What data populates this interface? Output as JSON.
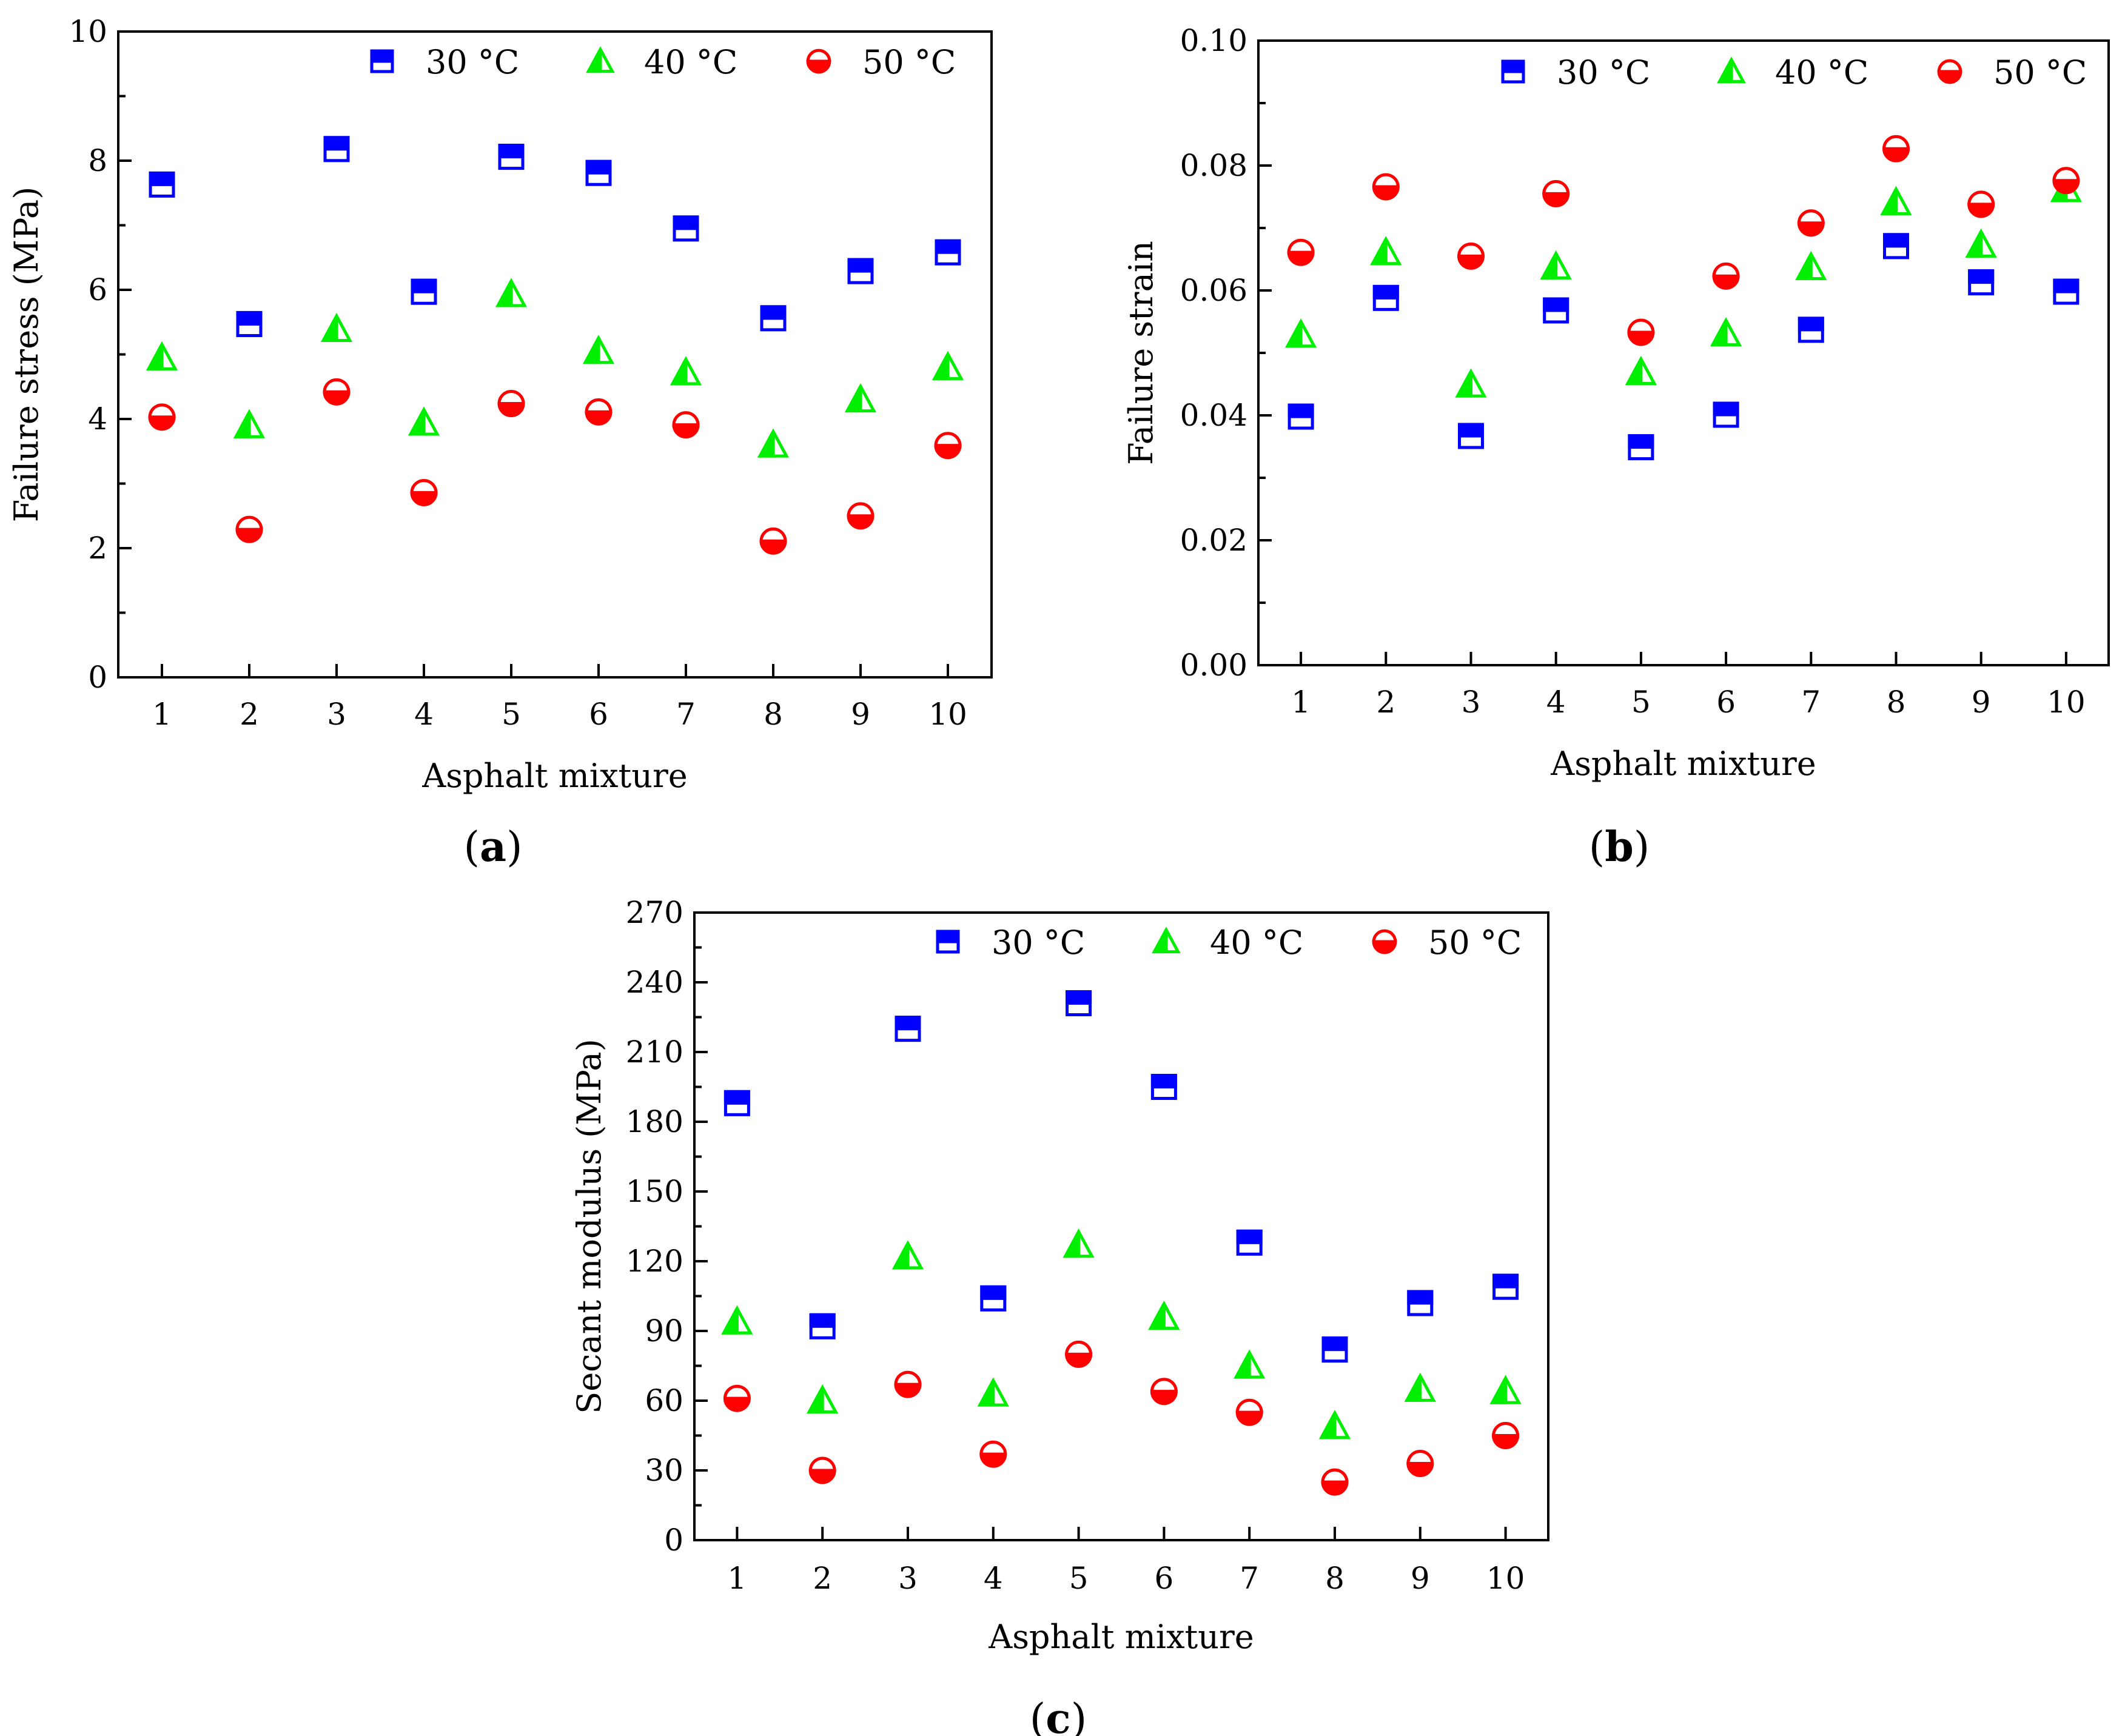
{
  "chart_data": [
    {
      "type": "scatter",
      "panel_label": "(a)",
      "caption_open": "(",
      "caption_letter": "a",
      "caption_close": ")",
      "xlabel": "Asphalt mixture",
      "ylabel": "Failure stress (MPa)",
      "categories": [
        "1",
        "2",
        "3",
        "4",
        "5",
        "6",
        "7",
        "8",
        "9",
        "10"
      ],
      "x": [
        1,
        2,
        3,
        4,
        5,
        6,
        7,
        8,
        9,
        10
      ],
      "xlim": [
        0.5,
        10.5
      ],
      "ylim": [
        0,
        10
      ],
      "yticks": [
        0,
        2,
        4,
        6,
        8,
        10
      ],
      "ytick_labels": [
        "0",
        "2",
        "4",
        "6",
        "8",
        "10"
      ],
      "ytick_minor": [
        1,
        3,
        5,
        7,
        9
      ],
      "legend_position": "top-right",
      "series": [
        {
          "name": "30 °C",
          "marker": "square",
          "color": "#0000ff",
          "values": [
            7.63,
            5.47,
            8.18,
            5.97,
            8.06,
            7.81,
            6.95,
            5.56,
            6.29,
            6.58
          ]
        },
        {
          "name": "40 °C",
          "marker": "triangle",
          "color": "#00ee00",
          "values": [
            4.95,
            3.9,
            5.39,
            3.94,
            5.93,
            5.05,
            4.72,
            3.6,
            4.3,
            4.8
          ]
        },
        {
          "name": "50 °C",
          "marker": "circle",
          "color": "#ff0000",
          "values": [
            4.03,
            2.29,
            4.42,
            2.86,
            4.24,
            4.11,
            3.91,
            2.11,
            2.5,
            3.59
          ]
        }
      ]
    },
    {
      "type": "scatter",
      "panel_label": "(b)",
      "caption_open": "(",
      "caption_letter": "b",
      "caption_close": ")",
      "xlabel": "Asphalt mixture",
      "ylabel": "Failure strain",
      "categories": [
        "1",
        "2",
        "3",
        "4",
        "5",
        "6",
        "7",
        "8",
        "9",
        "10"
      ],
      "x": [
        1,
        2,
        3,
        4,
        5,
        6,
        7,
        8,
        9,
        10
      ],
      "xlim": [
        0.5,
        10.5
      ],
      "ylim": [
        0,
        0.1
      ],
      "yticks": [
        0,
        0.02,
        0.04,
        0.06,
        0.08,
        0.1
      ],
      "ytick_labels": [
        "0.00",
        "0.02",
        "0.04",
        "0.06",
        "0.08",
        "0.10"
      ],
      "ytick_minor": [
        0.01,
        0.03,
        0.05,
        0.07,
        0.09
      ],
      "legend_position": "top-right",
      "series": [
        {
          "name": "30 °C",
          "marker": "square",
          "color": "#0000ff",
          "values": [
            0.0398,
            0.0588,
            0.0367,
            0.0568,
            0.0349,
            0.0401,
            0.0537,
            0.0671,
            0.0613,
            0.0598
          ]
        },
        {
          "name": "40 °C",
          "marker": "triangle",
          "color": "#00ee00",
          "values": [
            0.0529,
            0.0661,
            0.0449,
            0.0638,
            0.0469,
            0.0531,
            0.0637,
            0.0741,
            0.0673,
            0.0762
          ]
        },
        {
          "name": "50 °C",
          "marker": "circle",
          "color": "#ff0000",
          "values": [
            0.0661,
            0.0766,
            0.0655,
            0.0755,
            0.0533,
            0.0623,
            0.0708,
            0.0827,
            0.0738,
            0.0776
          ]
        }
      ]
    },
    {
      "type": "scatter",
      "panel_label": "(c)",
      "caption_open": "(",
      "caption_letter": "c",
      "caption_close": ")",
      "xlabel": "Asphalt mixture",
      "ylabel": "Secant modulus (MPa)",
      "categories": [
        "1",
        "2",
        "3",
        "4",
        "5",
        "6",
        "7",
        "8",
        "9",
        "10"
      ],
      "x": [
        1,
        2,
        3,
        4,
        5,
        6,
        7,
        8,
        9,
        10
      ],
      "xlim": [
        0.5,
        10.5
      ],
      "ylim": [
        0,
        270
      ],
      "yticks": [
        0,
        30,
        60,
        90,
        120,
        150,
        180,
        210,
        240,
        270
      ],
      "ytick_labels": [
        "0",
        "30",
        "60",
        "90",
        "120",
        "150",
        "180",
        "210",
        "240",
        "270"
      ],
      "ytick_minor": [
        15,
        45,
        75,
        105,
        135,
        165,
        195,
        225,
        255
      ],
      "legend_position": "top-right",
      "series": [
        {
          "name": "30 °C",
          "marker": "square",
          "color": "#0000ff",
          "values": [
            188,
            92,
            220,
            104,
            231,
            195,
            128,
            82,
            102,
            109
          ]
        },
        {
          "name": "40 °C",
          "marker": "triangle",
          "color": "#00ee00",
          "values": [
            94,
            60,
            122,
            63,
            127,
            96,
            75,
            49,
            65,
            64
          ]
        },
        {
          "name": "50 °C",
          "marker": "circle",
          "color": "#ff0000",
          "values": [
            61,
            30,
            67,
            37,
            80,
            64,
            55,
            25,
            33,
            45
          ]
        }
      ]
    }
  ]
}
